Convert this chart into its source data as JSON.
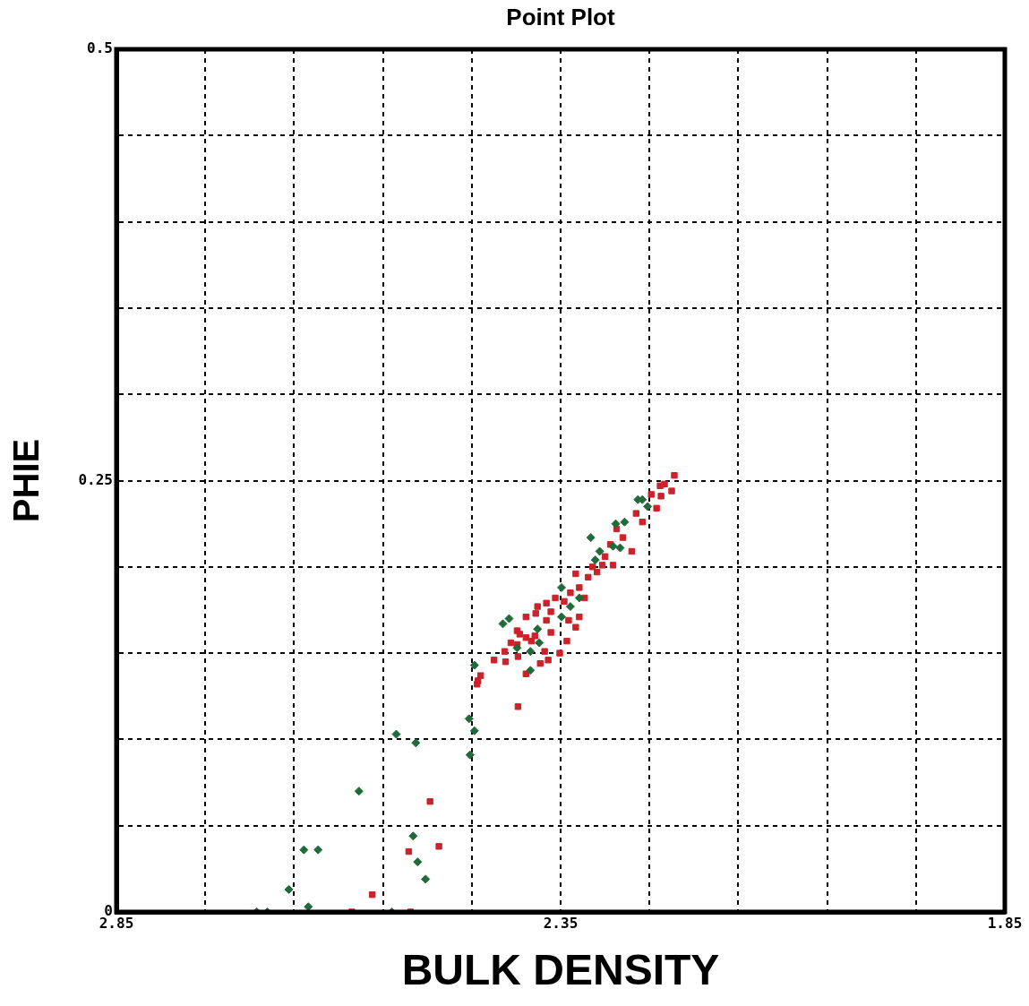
{
  "chart_data": {
    "type": "scatter",
    "title": "Point Plot",
    "xlabel": "BULK DENSITY",
    "ylabel": "PHIE",
    "xlim": [
      2.85,
      1.85
    ],
    "xticks": [
      2.85,
      {
        "value": 2.75,
        "label": null
      },
      {
        "value": 2.65,
        "label": null
      },
      {
        "value": 2.55,
        "label": null
      },
      {
        "value": 2.45,
        "label": null
      },
      2.35,
      {
        "value": 2.25,
        "label": null
      },
      {
        "value": 2.15,
        "label": null
      },
      {
        "value": 2.05,
        "label": null
      },
      {
        "value": 1.95,
        "label": null
      },
      1.85
    ],
    "ylim": [
      0,
      0.5
    ],
    "yticks": [
      0,
      {
        "value": 0.05,
        "label": null
      },
      {
        "value": 0.1,
        "label": null
      },
      {
        "value": 0.15,
        "label": null
      },
      {
        "value": 0.2,
        "label": null
      },
      0.25,
      {
        "value": 0.3,
        "label": null
      },
      {
        "value": 0.35,
        "label": null
      },
      {
        "value": 0.4,
        "label": null
      },
      {
        "value": 0.45,
        "label": null
      },
      0.5
    ],
    "grid": true,
    "legend": false,
    "line_style": "dashed",
    "series": [
      {
        "color": "#1f6b3a",
        "marker": "diamond",
        "x": [
          2.692,
          2.68,
          2.656,
          2.639,
          2.623,
          2.634,
          2.577,
          2.535,
          2.513,
          2.516,
          2.511,
          2.502,
          2.54,
          2.453,
          2.447,
          2.452,
          2.447,
          2.258,
          2.252,
          2.316,
          2.288,
          2.283,
          2.306,
          2.311,
          2.349,
          2.329,
          2.339,
          2.349,
          2.408,
          2.415,
          2.376,
          2.374,
          2.384,
          2.384,
          2.399,
          2.278,
          2.263,
          2.291
        ],
        "values": [
          0,
          0,
          0.013,
          0.036,
          0.036,
          0.003,
          0.07,
          0.103,
          0.098,
          0.044,
          0.029,
          0.019,
          0,
          0.112,
          0.105,
          0.091,
          0.143,
          0.239,
          0.235,
          0.217,
          0.225,
          0.211,
          0.209,
          0.204,
          0.188,
          0.182,
          0.177,
          0.171,
          0.17,
          0.167,
          0.164,
          0.156,
          0.151,
          0.14,
          0.153,
          0.226,
          0.239,
          0.212
        ]
      },
      {
        "color": "#cc2229",
        "marker": "square",
        "x": [
          2.497,
          2.521,
          2.487,
          2.562,
          2.585,
          2.519,
          2.222,
          2.233,
          2.225,
          2.238,
          2.237,
          2.248,
          2.242,
          2.258,
          2.265,
          2.28,
          2.27,
          2.287,
          2.294,
          2.3,
          2.291,
          2.309,
          2.319,
          2.333,
          2.329,
          2.339,
          2.323,
          2.346,
          2.356,
          2.366,
          2.376,
          2.378,
          2.389,
          2.361,
          2.366,
          2.341,
          2.329,
          2.333,
          2.361,
          2.399,
          2.396,
          2.389,
          2.379,
          2.383,
          2.406,
          2.399,
          2.413,
          2.425,
          2.412,
          2.398,
          2.368,
          2.364,
          2.373,
          2.351,
          2.343,
          2.389,
          2.44,
          2.443,
          2.444,
          2.398,
          2.314,
          2.303
        ],
        "values": [
          0.064,
          0.035,
          0.038,
          0.01,
          0,
          0,
          0.253,
          0.248,
          0.244,
          0.247,
          0.241,
          0.242,
          0.234,
          0.226,
          0.231,
          0.217,
          0.209,
          0.222,
          0.213,
          0.206,
          0.201,
          0.197,
          0.194,
          0.196,
          0.188,
          0.185,
          0.182,
          0.18,
          0.182,
          0.179,
          0.177,
          0.173,
          0.171,
          0.174,
          0.169,
          0.169,
          0.171,
          0.165,
          0.162,
          0.163,
          0.161,
          0.159,
          0.16,
          0.157,
          0.156,
          0.155,
          0.151,
          0.146,
          0.145,
          0.148,
          0.151,
          0.146,
          0.144,
          0.15,
          0.157,
          0.138,
          0.137,
          0.134,
          0.132,
          0.119,
          0.2,
          0.201
        ]
      }
    ]
  }
}
